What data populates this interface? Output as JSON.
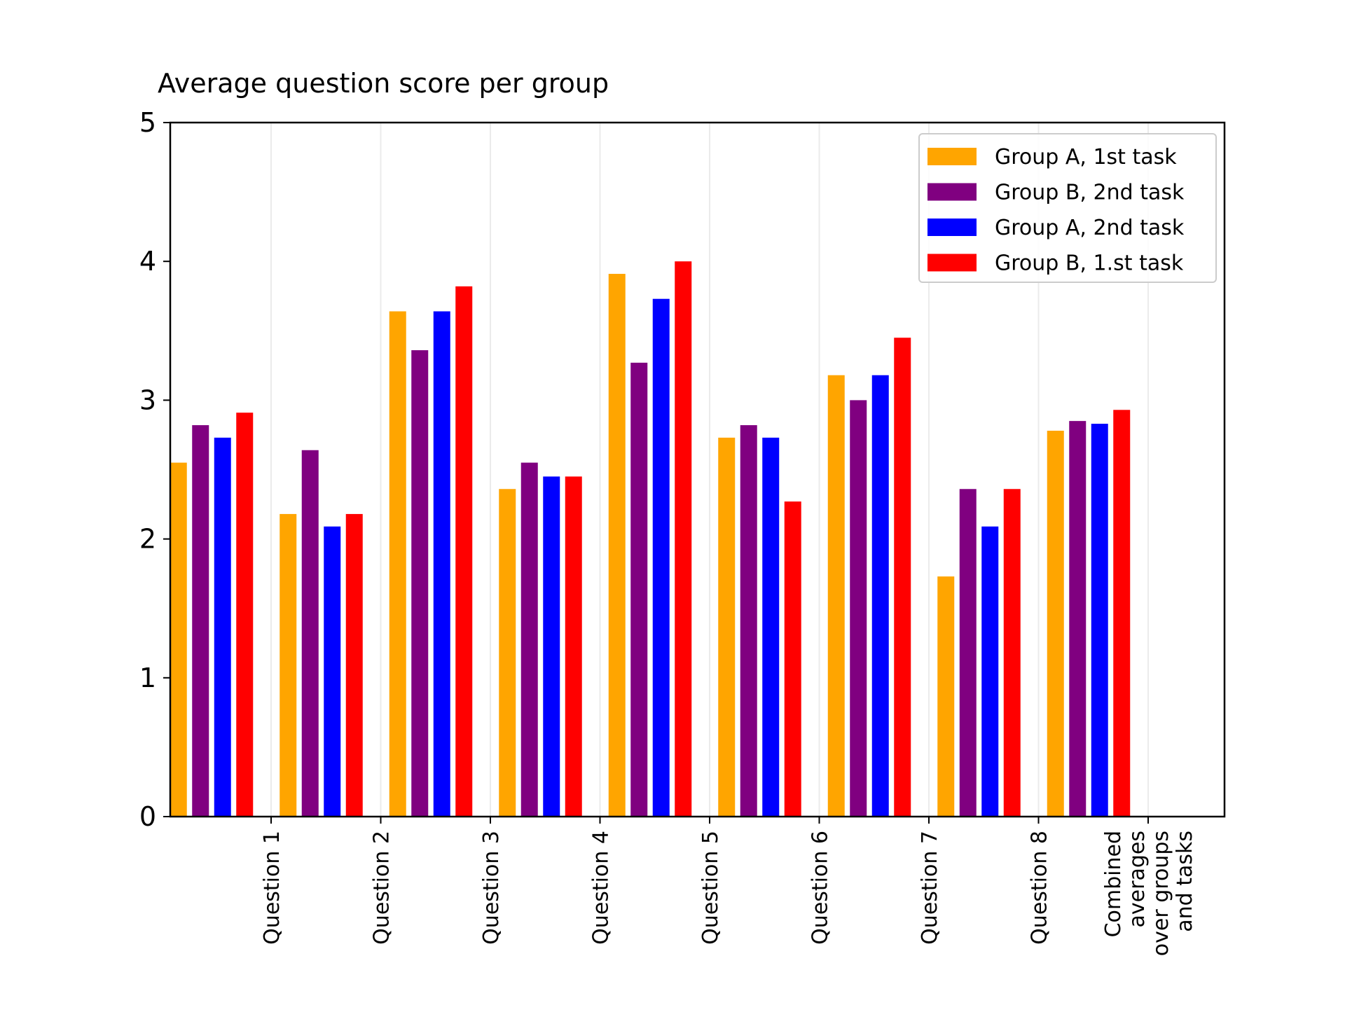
{
  "chart_data": {
    "type": "bar",
    "title": "Average question score per group",
    "xlabel": "",
    "ylabel": "",
    "ylim": [
      0,
      5
    ],
    "yticks": [
      0,
      1,
      2,
      3,
      4,
      5
    ],
    "grid": "vertical",
    "legend_position": "top-right",
    "categories": [
      "Question 1",
      "Question 2",
      "Question 3",
      "Question 4",
      "Question 5",
      "Question 6",
      "Question 7",
      "Question 8",
      [
        "Combined",
        "averages",
        "over groups",
        "and tasks"
      ]
    ],
    "series": [
      {
        "name": "Group A, 1st task",
        "color": "#FFA500",
        "values": [
          2.55,
          2.18,
          3.64,
          2.36,
          3.91,
          2.73,
          3.18,
          1.73,
          2.78
        ]
      },
      {
        "name": "Group B, 2nd task",
        "color": "#800080",
        "values": [
          2.82,
          2.64,
          3.36,
          2.55,
          3.27,
          2.82,
          3.0,
          2.36,
          2.85
        ]
      },
      {
        "name": "Group A, 2nd task",
        "color": "#0000FF",
        "values": [
          2.73,
          2.09,
          3.64,
          2.45,
          3.73,
          2.73,
          3.18,
          2.09,
          2.83
        ]
      },
      {
        "name": "Group B, 1.st task",
        "color": "#FF0000",
        "values": [
          2.91,
          2.18,
          3.82,
          2.45,
          4.0,
          2.27,
          3.45,
          2.36,
          2.93
        ]
      }
    ]
  }
}
